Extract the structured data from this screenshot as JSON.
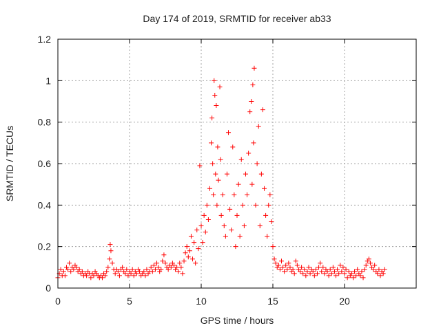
{
  "chart_data": {
    "type": "scatter",
    "title": "Day 174 of 2019, SRMTID for receiver ab33",
    "xlabel": "GPS time / hours",
    "ylabel": "SRMTID / TECUs",
    "xlim": [
      0,
      25
    ],
    "ylim": [
      0,
      1.2
    ],
    "x_ticks": [
      0,
      5,
      10,
      15,
      20
    ],
    "x_tick_labels": [
      "0",
      "5",
      "10",
      "15",
      "20"
    ],
    "y_ticks": [
      0,
      0.2,
      0.4,
      0.6,
      0.8,
      1.0,
      1.2
    ],
    "y_tick_labels": [
      "0",
      "0.2",
      "0.4",
      "0.6",
      "0.8",
      "1",
      "1.2"
    ],
    "grid": true,
    "marker": "plus",
    "color": "#ff0000",
    "series": [
      {
        "name": "SRMTID",
        "points": [
          [
            0.0,
            0.05
          ],
          [
            0.1,
            0.07
          ],
          [
            0.2,
            0.09
          ],
          [
            0.3,
            0.06
          ],
          [
            0.4,
            0.08
          ],
          [
            0.5,
            0.06
          ],
          [
            0.6,
            0.1
          ],
          [
            0.7,
            0.09
          ],
          [
            0.8,
            0.12
          ],
          [
            0.9,
            0.08
          ],
          [
            1.0,
            0.1
          ],
          [
            1.1,
            0.09
          ],
          [
            1.2,
            0.11
          ],
          [
            1.3,
            0.1
          ],
          [
            1.4,
            0.08
          ],
          [
            1.5,
            0.09
          ],
          [
            1.6,
            0.07
          ],
          [
            1.7,
            0.08
          ],
          [
            1.8,
            0.06
          ],
          [
            1.9,
            0.07
          ],
          [
            2.0,
            0.06
          ],
          [
            2.1,
            0.08
          ],
          [
            2.2,
            0.07
          ],
          [
            2.3,
            0.05
          ],
          [
            2.4,
            0.07
          ],
          [
            2.5,
            0.06
          ],
          [
            2.6,
            0.08
          ],
          [
            2.7,
            0.07
          ],
          [
            2.8,
            0.06
          ],
          [
            2.9,
            0.05
          ],
          [
            3.0,
            0.06
          ],
          [
            3.1,
            0.05
          ],
          [
            3.2,
            0.07
          ],
          [
            3.3,
            0.06
          ],
          [
            3.4,
            0.08
          ],
          [
            3.5,
            0.1
          ],
          [
            3.6,
            0.14
          ],
          [
            3.65,
            0.21
          ],
          [
            3.7,
            0.18
          ],
          [
            3.8,
            0.12
          ],
          [
            3.9,
            0.09
          ],
          [
            4.0,
            0.07
          ],
          [
            4.1,
            0.09
          ],
          [
            4.2,
            0.08
          ],
          [
            4.3,
            0.06
          ],
          [
            4.4,
            0.09
          ],
          [
            4.5,
            0.1
          ],
          [
            4.6,
            0.08
          ],
          [
            4.7,
            0.07
          ],
          [
            4.8,
            0.09
          ],
          [
            4.9,
            0.06
          ],
          [
            5.0,
            0.08
          ],
          [
            5.1,
            0.07
          ],
          [
            5.2,
            0.09
          ],
          [
            5.3,
            0.06
          ],
          [
            5.4,
            0.08
          ],
          [
            5.5,
            0.07
          ],
          [
            5.6,
            0.09
          ],
          [
            5.7,
            0.08
          ],
          [
            5.8,
            0.06
          ],
          [
            5.9,
            0.07
          ],
          [
            6.0,
            0.08
          ],
          [
            6.1,
            0.06
          ],
          [
            6.2,
            0.09
          ],
          [
            6.3,
            0.07
          ],
          [
            6.4,
            0.08
          ],
          [
            6.5,
            0.1
          ],
          [
            6.6,
            0.08
          ],
          [
            6.7,
            0.11
          ],
          [
            6.8,
            0.09
          ],
          [
            6.9,
            0.12
          ],
          [
            7.0,
            0.1
          ],
          [
            7.1,
            0.08
          ],
          [
            7.2,
            0.09
          ],
          [
            7.3,
            0.13
          ],
          [
            7.4,
            0.16
          ],
          [
            7.5,
            0.12
          ],
          [
            7.6,
            0.1
          ],
          [
            7.7,
            0.09
          ],
          [
            7.8,
            0.11
          ],
          [
            7.9,
            0.1
          ],
          [
            8.0,
            0.12
          ],
          [
            8.1,
            0.11
          ],
          [
            8.2,
            0.09
          ],
          [
            8.3,
            0.1
          ],
          [
            8.4,
            0.08
          ],
          [
            8.5,
            0.12
          ],
          [
            8.6,
            0.1
          ],
          [
            8.7,
            0.07
          ],
          [
            8.8,
            0.13
          ],
          [
            8.9,
            0.17
          ],
          [
            9.0,
            0.2
          ],
          [
            9.1,
            0.15
          ],
          [
            9.2,
            0.18
          ],
          [
            9.3,
            0.25
          ],
          [
            9.4,
            0.14
          ],
          [
            9.5,
            0.22
          ],
          [
            9.6,
            0.12
          ],
          [
            9.7,
            0.28
          ],
          [
            9.8,
            0.19
          ],
          [
            9.9,
            0.59
          ],
          [
            10.0,
            0.3
          ],
          [
            10.1,
            0.22
          ],
          [
            10.2,
            0.35
          ],
          [
            10.3,
            0.27
          ],
          [
            10.4,
            0.4
          ],
          [
            10.5,
            0.33
          ],
          [
            10.6,
            0.48
          ],
          [
            10.7,
            0.7
          ],
          [
            10.75,
            0.82
          ],
          [
            10.8,
            0.6
          ],
          [
            10.85,
            0.45
          ],
          [
            10.9,
            1.0
          ],
          [
            10.95,
            0.93
          ],
          [
            11.0,
            0.55
          ],
          [
            11.05,
            0.88
          ],
          [
            11.1,
            0.4
          ],
          [
            11.15,
            0.68
          ],
          [
            11.2,
            0.52
          ],
          [
            11.3,
            0.97
          ],
          [
            11.35,
            0.62
          ],
          [
            11.4,
            0.35
          ],
          [
            11.5,
            0.45
          ],
          [
            11.6,
            0.3
          ],
          [
            11.7,
            0.25
          ],
          [
            11.8,
            0.55
          ],
          [
            11.9,
            0.75
          ],
          [
            12.0,
            0.38
          ],
          [
            12.1,
            0.28
          ],
          [
            12.2,
            0.68
          ],
          [
            12.3,
            0.45
          ],
          [
            12.4,
            0.2
          ],
          [
            12.5,
            0.35
          ],
          [
            12.6,
            0.5
          ],
          [
            12.7,
            0.25
          ],
          [
            12.8,
            0.62
          ],
          [
            12.9,
            0.4
          ],
          [
            13.0,
            0.3
          ],
          [
            13.1,
            0.55
          ],
          [
            13.2,
            0.45
          ],
          [
            13.3,
            0.65
          ],
          [
            13.4,
            0.85
          ],
          [
            13.5,
            0.9
          ],
          [
            13.55,
            0.5
          ],
          [
            13.6,
            0.98
          ],
          [
            13.65,
            0.7
          ],
          [
            13.7,
            1.06
          ],
          [
            13.8,
            0.4
          ],
          [
            13.9,
            0.6
          ],
          [
            14.0,
            0.78
          ],
          [
            14.1,
            0.3
          ],
          [
            14.2,
            0.55
          ],
          [
            14.3,
            0.86
          ],
          [
            14.4,
            0.48
          ],
          [
            14.5,
            0.35
          ],
          [
            14.6,
            0.25
          ],
          [
            14.7,
            0.4
          ],
          [
            14.8,
            0.45
          ],
          [
            14.9,
            0.32
          ],
          [
            15.0,
            0.2
          ],
          [
            15.1,
            0.14
          ],
          [
            15.2,
            0.12
          ],
          [
            15.3,
            0.1
          ],
          [
            15.4,
            0.11
          ],
          [
            15.5,
            0.09
          ],
          [
            15.6,
            0.13
          ],
          [
            15.7,
            0.1
          ],
          [
            15.8,
            0.08
          ],
          [
            15.9,
            0.11
          ],
          [
            16.0,
            0.09
          ],
          [
            16.1,
            0.12
          ],
          [
            16.2,
            0.1
          ],
          [
            16.3,
            0.08
          ],
          [
            16.4,
            0.09
          ],
          [
            16.5,
            0.07
          ],
          [
            16.6,
            0.13
          ],
          [
            16.7,
            0.11
          ],
          [
            16.8,
            0.09
          ],
          [
            16.9,
            0.08
          ],
          [
            17.0,
            0.1
          ],
          [
            17.1,
            0.07
          ],
          [
            17.2,
            0.09
          ],
          [
            17.3,
            0.06
          ],
          [
            17.4,
            0.08
          ],
          [
            17.5,
            0.1
          ],
          [
            17.6,
            0.07
          ],
          [
            17.7,
            0.09
          ],
          [
            17.8,
            0.08
          ],
          [
            17.9,
            0.06
          ],
          [
            18.0,
            0.09
          ],
          [
            18.1,
            0.07
          ],
          [
            18.2,
            0.1
          ],
          [
            18.3,
            0.12
          ],
          [
            18.4,
            0.08
          ],
          [
            18.5,
            0.1
          ],
          [
            18.6,
            0.07
          ],
          [
            18.7,
            0.09
          ],
          [
            18.8,
            0.08
          ],
          [
            18.9,
            0.06
          ],
          [
            19.0,
            0.09
          ],
          [
            19.1,
            0.07
          ],
          [
            19.2,
            0.1
          ],
          [
            19.3,
            0.08
          ],
          [
            19.4,
            0.06
          ],
          [
            19.5,
            0.09
          ],
          [
            19.6,
            0.07
          ],
          [
            19.7,
            0.11
          ],
          [
            19.8,
            0.08
          ],
          [
            19.9,
            0.1
          ],
          [
            20.0,
            0.07
          ],
          [
            20.1,
            0.09
          ],
          [
            20.2,
            0.05
          ],
          [
            20.3,
            0.08
          ],
          [
            20.4,
            0.06
          ],
          [
            20.5,
            0.07
          ],
          [
            20.6,
            0.05
          ],
          [
            20.7,
            0.08
          ],
          [
            20.8,
            0.06
          ],
          [
            20.9,
            0.09
          ],
          [
            21.0,
            0.07
          ],
          [
            21.1,
            0.06
          ],
          [
            21.2,
            0.08
          ],
          [
            21.3,
            0.05
          ],
          [
            21.4,
            0.09
          ],
          [
            21.5,
            0.11
          ],
          [
            21.6,
            0.13
          ],
          [
            21.7,
            0.14
          ],
          [
            21.8,
            0.12
          ],
          [
            21.9,
            0.1
          ],
          [
            22.0,
            0.09
          ],
          [
            22.1,
            0.11
          ],
          [
            22.2,
            0.08
          ],
          [
            22.3,
            0.07
          ],
          [
            22.4,
            0.09
          ],
          [
            22.5,
            0.06
          ],
          [
            22.6,
            0.08
          ],
          [
            22.7,
            0.07
          ],
          [
            22.8,
            0.09
          ]
        ]
      }
    ]
  }
}
